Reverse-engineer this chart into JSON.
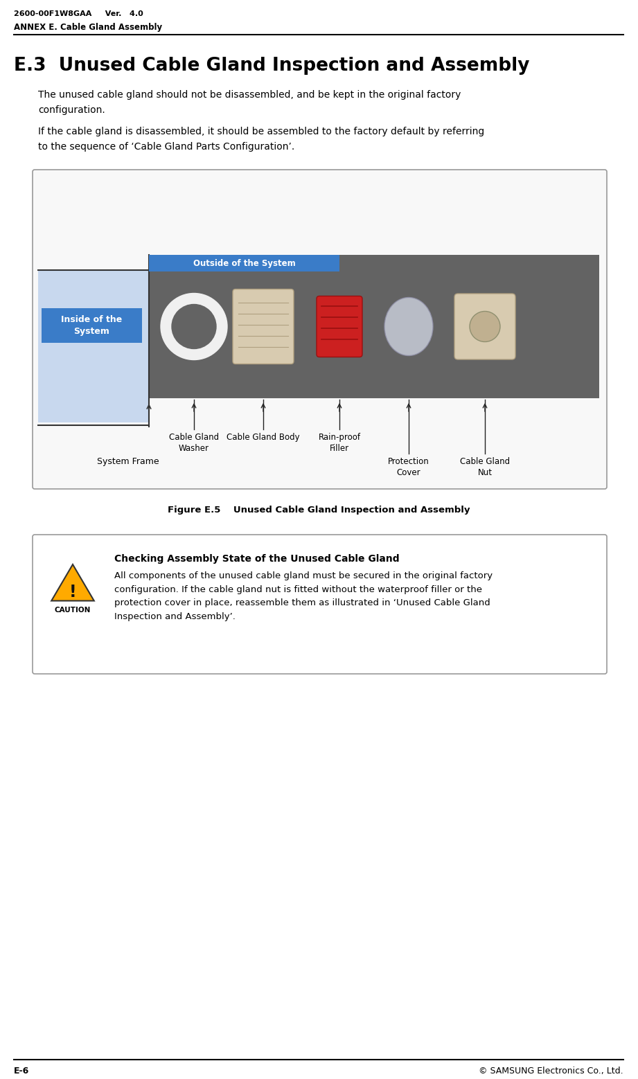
{
  "header_left": "2600-00F1W8GAA     Ver.   4.0",
  "header_subtitle": "ANNEX E. Cable Gland Assembly",
  "section_title": "E.3  Unused Cable Gland Inspection and Assembly",
  "para1": "The unused cable gland should not be disassembled, and be kept in the original factory\nconfiguration.",
  "para2": "If the cable gland is disassembled, it should be assembled to the factory default by referring\nto the sequence of ‘Cable Gland Parts Configuration’.",
  "figure_caption": "Figure E.5    Unused Cable Gland Inspection and Assembly",
  "outside_label": "Outside of the System",
  "inside_label": "Inside of the\nSystem",
  "system_frame_label": "System Frame",
  "part_labels": [
    "Cable Gland\nWasher",
    "Cable Gland Body",
    "Rain-proof\nFiller",
    "Protection\nCover",
    "Cable Gland\nNut"
  ],
  "caution_title": "Checking Assembly State of the Unused Cable Gland",
  "caution_text": "All components of the unused cable gland must be secured in the original factory\nconfiguration. If the cable gland nut is fitted without the waterproof filler or the\nprotection cover in place, reassemble them as illustrated in ‘Unused Cable Gland\nInspection and Assembly’.",
  "footer_left": "E-6",
  "footer_right": "© SAMSUNG Electronics Co., Ltd.",
  "bg_color": "#ffffff",
  "box_border_color": "#aaaaaa",
  "outside_box_color": "#3a7cc8",
  "inside_box_color": "#3a7cc8",
  "inside_box_bg": "#c8d8ee",
  "photo_bg": "#787878",
  "caution_border_color": "#999999",
  "warn_color": "#ffaa00"
}
